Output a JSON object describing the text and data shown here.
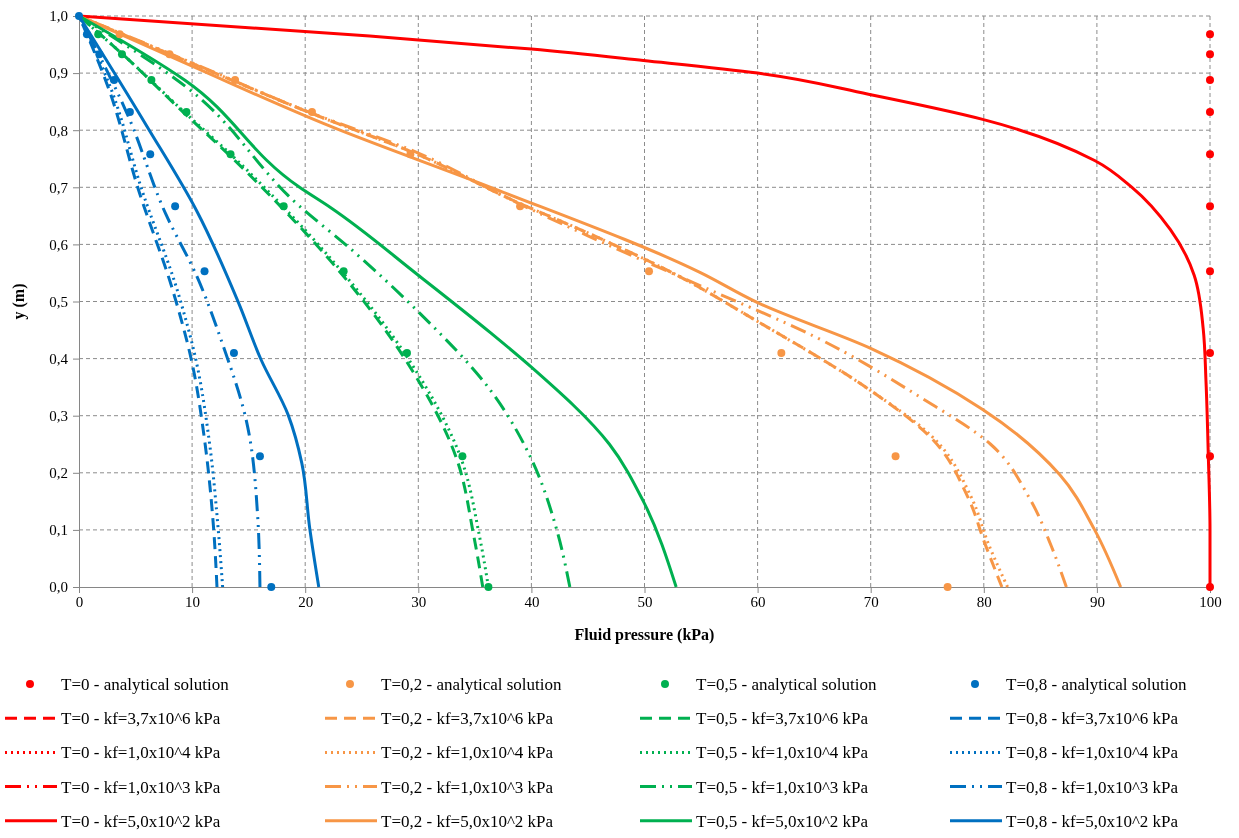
{
  "chart_data": {
    "type": "line",
    "xlabel": "Fluid pressure (kPa)",
    "ylabel": "y (m)",
    "xlim": [
      0,
      100
    ],
    "xticks": [
      0,
      10,
      20,
      30,
      40,
      50,
      60,
      70,
      80,
      90,
      100
    ],
    "ylim": [
      0,
      1
    ],
    "yticks": [
      {
        "value": 0,
        "label": "0,0"
      },
      {
        "value": 0.1,
        "label": "0,1"
      },
      {
        "value": 0.2,
        "label": "0,2"
      },
      {
        "value": 0.3,
        "label": "0,3"
      },
      {
        "value": 0.4,
        "label": "0,4"
      },
      {
        "value": 0.5,
        "label": "0,5"
      },
      {
        "value": 0.6,
        "label": "0,6"
      },
      {
        "value": 0.7,
        "label": "0,7"
      },
      {
        "value": 0.8,
        "label": "0,8"
      },
      {
        "value": 0.9,
        "label": "0,9"
      },
      {
        "value": 1,
        "label": "1,0"
      }
    ],
    "grid": true,
    "legend": "bottom",
    "series": [
      {
        "name": "T=0 - analytical solution",
        "type": "scatter",
        "marker": "circle",
        "color": "#ff0000",
        "x": [
          null,
          100,
          100,
          100,
          100,
          100,
          100,
          100,
          100,
          100,
          100
        ],
        "values": [
          null,
          0.968,
          0.933,
          0.888,
          0.832,
          0.758,
          0.667,
          0.553,
          0.41,
          0.229,
          0
        ]
      },
      {
        "name": "T=0,2 - analytical solution",
        "type": "scatter",
        "marker": "circle",
        "color": "#f79646",
        "x": [
          null,
          3.6,
          8.0,
          13.8,
          20.6,
          29.3,
          39.0,
          50.4,
          62.1,
          72.2,
          76.8
        ],
        "values": [
          null,
          0.968,
          0.933,
          0.888,
          0.832,
          0.758,
          0.667,
          0.553,
          0.41,
          0.229,
          0
        ]
      },
      {
        "name": "T=0,5 - analytical solution",
        "type": "scatter",
        "marker": "circle",
        "color": "#00b050",
        "x": [
          null,
          1.7,
          3.8,
          6.4,
          9.5,
          13.4,
          18.1,
          23.4,
          29.0,
          33.9,
          36.2
        ],
        "values": [
          null,
          0.968,
          0.933,
          0.888,
          0.832,
          0.758,
          0.667,
          0.553,
          0.41,
          0.229,
          0
        ]
      },
      {
        "name": "T=0,8 - analytical solution",
        "type": "scatter",
        "marker": "circle",
        "color": "#0070c0",
        "x": [
          0,
          0.7,
          1.8,
          3.1,
          4.5,
          6.3,
          8.5,
          11.1,
          13.7,
          16.0,
          17.0
        ],
        "values": [
          1,
          0.968,
          0.933,
          0.888,
          0.832,
          0.758,
          0.667,
          0.553,
          0.41,
          0.229,
          0
        ]
      },
      {
        "name": "T=0 - kf=3,7x10^6 kPa",
        "line_style": "dashed",
        "color": "#ff0000",
        "values": [
          null
        ]
      },
      {
        "name": "T=0,2 - kf=3,7x10^6 kPa",
        "line_style": "dashed",
        "color": "#f79646",
        "x": [
          0,
          10,
          20.5,
          30,
          38.5,
          45,
          52,
          60,
          70,
          75.2,
          78.6,
          80.1,
          81.6
        ],
        "values": [
          1,
          0.917,
          0.83,
          0.757,
          0.676,
          0.62,
          0.555,
          0.465,
          0.344,
          0.264,
          0.157,
          0.076,
          0
        ]
      },
      {
        "name": "T=0,5 - kf=3,7x10^6 kPa",
        "line_style": "dashed",
        "color": "#00b050",
        "x": [
          0,
          3.8,
          9.3,
          13.2,
          17.8,
          22.2,
          28.8,
          33.4,
          34.9,
          35.7
        ],
        "values": [
          1,
          0.934,
          0.83,
          0.758,
          0.667,
          0.572,
          0.4,
          0.224,
          0.09,
          0
        ]
      },
      {
        "name": "T=0,8 - kf=3,7x10^6 kPa",
        "line_style": "dashed",
        "color": "#0070c0",
        "x": [
          0,
          2.6,
          5.3,
          8.3,
          10.0,
          11.1,
          11.9,
          12.2
        ],
        "values": [
          1,
          0.874,
          0.693,
          0.519,
          0.392,
          0.258,
          0.103,
          0
        ]
      },
      {
        "name": "T=0 - kf=1,0x10^4 kPa",
        "line_style": "dotted",
        "color": "#ff0000",
        "values": [
          null
        ]
      },
      {
        "name": "T=0,2 - kf=1,0x10^4 kPa",
        "line_style": "dotted",
        "color": "#f79646",
        "x": [
          0,
          10,
          20.5,
          30,
          38.5,
          45,
          52,
          60,
          70,
          75.4,
          78.9,
          80.4,
          82.1
        ],
        "values": [
          1,
          0.917,
          0.83,
          0.757,
          0.676,
          0.62,
          0.555,
          0.465,
          0.344,
          0.264,
          0.157,
          0.076,
          0
        ]
      },
      {
        "name": "T=0,5 - kf=1,0x10^4 kPa",
        "line_style": "dotted",
        "color": "#00b050",
        "x": [
          0,
          3.8,
          9.4,
          13.4,
          18.0,
          22.4,
          29.1,
          33.8,
          35.4,
          36.2
        ],
        "values": [
          1,
          0.934,
          0.83,
          0.758,
          0.667,
          0.572,
          0.4,
          0.224,
          0.09,
          0
        ]
      },
      {
        "name": "T=0,8 - kf=1,0x10^4 kPa",
        "line_style": "dotted",
        "color": "#0070c0",
        "x": [
          0,
          2.8,
          5.6,
          8.7,
          10.4,
          11.5,
          12.3,
          12.7
        ],
        "values": [
          1,
          0.874,
          0.693,
          0.519,
          0.392,
          0.258,
          0.103,
          0
        ]
      },
      {
        "name": "T=0 - kf=1,0x10^3 kPa",
        "line_style": "dashdot",
        "color": "#ff0000",
        "values": [
          null
        ]
      },
      {
        "name": "T=0,2 - kf=1,0x10^3 kPa",
        "line_style": "dashdot",
        "color": "#f79646",
        "x": [
          0,
          10,
          20.3,
          30,
          38,
          45,
          54.9,
          65.1,
          74.5,
          80.6,
          84.0,
          86.0,
          87.3
        ],
        "values": [
          1,
          0.918,
          0.832,
          0.76,
          0.68,
          0.615,
          0.528,
          0.438,
          0.331,
          0.25,
          0.157,
          0.07,
          0
        ]
      },
      {
        "name": "T=0,5 - kf=1,0x10^3 kPa",
        "line_style": "dashdot",
        "color": "#00b050",
        "x": [
          0,
          9.4,
          19.5,
          24.2,
          30,
          36.4,
          40,
          42.2,
          43.4
        ],
        "values": [
          1,
          0.877,
          0.667,
          0.589,
          0.482,
          0.344,
          0.224,
          0.103,
          0
        ]
      },
      {
        "name": "T=0,8 - kf=1,0x10^3 kPa",
        "line_style": "dashdot",
        "color": "#0070c0",
        "x": [
          0,
          4.3,
          7.7,
          10.4,
          12.7,
          14.8,
          15.8,
          16.0
        ],
        "values": [
          1,
          0.827,
          0.652,
          0.545,
          0.425,
          0.291,
          0.123,
          0
        ]
      },
      {
        "name": "T=0 - kf=5,0x10^2 kPa",
        "line_style": "solid",
        "color": "#ff0000",
        "x": [
          0,
          25.7,
          40,
          49.9,
          60,
          69.8,
          79.9,
          89.8,
          93.1,
          96.5,
          98.6,
          99.4,
          99.65,
          99.85,
          100,
          100
        ],
        "values": [
          1,
          0.965,
          0.942,
          0.922,
          0.9,
          0.863,
          0.819,
          0.747,
          0.7,
          0.626,
          0.546,
          0.452,
          0.358,
          0.23,
          0.1,
          0
        ]
      },
      {
        "name": "T=0,2 - kf=5,0x10^2 kPa",
        "line_style": "solid",
        "color": "#f79646",
        "x": [
          0,
          10,
          22.2,
          36.4,
          54.9,
          60,
          70,
          79.9,
          86.7,
          89.8,
          92.1
        ],
        "values": [
          1,
          0.912,
          0.807,
          0.7,
          0.551,
          0.498,
          0.418,
          0.311,
          0.197,
          0.1,
          0
        ]
      },
      {
        "name": "T=0,5 - kf=5,0x10^2 kPa",
        "line_style": "solid",
        "color": "#00b050",
        "x": [
          0,
          9.4,
          19.5,
          22.2,
          30,
          36.4,
          40,
          46.9,
          49.9,
          52.8
        ],
        "values": [
          1,
          0.887,
          0.7,
          0.665,
          0.546,
          0.445,
          0.385,
          0.25,
          0.15,
          0
        ]
      },
      {
        "name": "T=0,8 - kf=5,0x10^2 kPa",
        "line_style": "solid",
        "color": "#0070c0",
        "x": [
          0,
          6.0,
          10.4,
          14.1,
          16.1,
          18.5,
          19.7,
          20.4,
          21.2
        ],
        "values": [
          1,
          0.807,
          0.659,
          0.498,
          0.398,
          0.301,
          0.217,
          0.103,
          0
        ]
      }
    ]
  }
}
